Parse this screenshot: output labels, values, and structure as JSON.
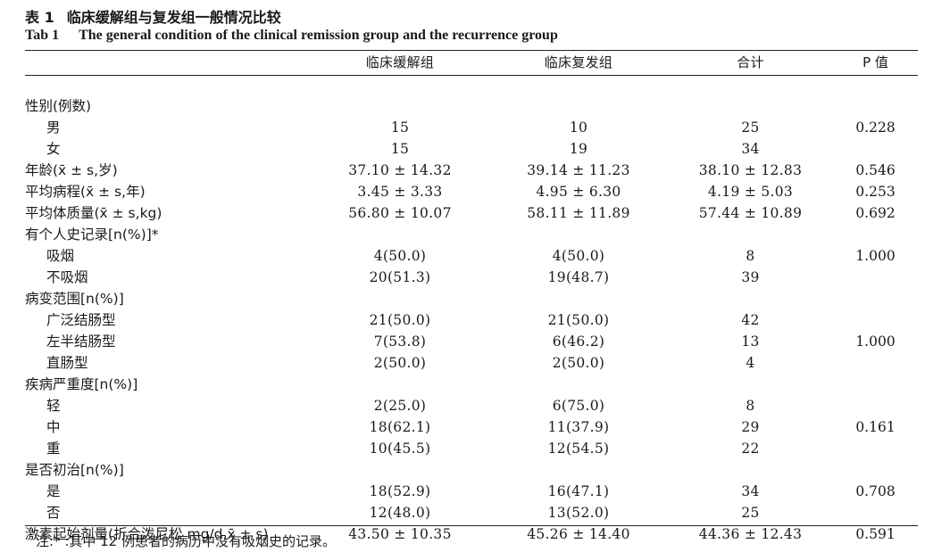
{
  "caption": {
    "cn_num": "表 1",
    "cn_title": "临床缓解组与复发组一般情况比较",
    "en_num": "Tab 1",
    "en_title": "The general condition of the clinical remission group and the recurrence group"
  },
  "columns": [
    "",
    "临床缓解组",
    "临床复发组",
    "合计",
    "P 值"
  ],
  "rows": [
    {
      "label": "性别(例数)",
      "sub": false,
      "remission": "",
      "recurrence": "",
      "total": "",
      "p": ""
    },
    {
      "label": "男",
      "sub": true,
      "remission": "15",
      "recurrence": "10",
      "total": "25",
      "p": "0.228"
    },
    {
      "label": "女",
      "sub": true,
      "remission": "15",
      "recurrence": "19",
      "total": "34",
      "p": ""
    },
    {
      "label": "年龄(x̄ ± s,岁)",
      "sub": false,
      "remission": "37.10 ± 14.32",
      "recurrence": "39.14 ± 11.23",
      "total": "38.10 ± 12.83",
      "p": "0.546"
    },
    {
      "label": "平均病程(x̄ ± s,年)",
      "sub": false,
      "remission": "3.45 ± 3.33",
      "recurrence": "4.95 ± 6.30",
      "total": "4.19 ± 5.03",
      "p": "0.253"
    },
    {
      "label": "平均体质量(x̄ ± s,kg)",
      "sub": false,
      "remission": "56.80 ± 10.07",
      "recurrence": "58.11 ± 11.89",
      "total": "57.44 ± 10.89",
      "p": "0.692"
    },
    {
      "label": "有个人史记录[n(%)]*",
      "sub": false,
      "remission": "",
      "recurrence": "",
      "total": "",
      "p": ""
    },
    {
      "label": "吸烟",
      "sub": true,
      "remission": "4(50.0)",
      "recurrence": "4(50.0)",
      "total": "8",
      "p": "1.000"
    },
    {
      "label": "不吸烟",
      "sub": true,
      "remission": "20(51.3)",
      "recurrence": "19(48.7)",
      "total": "39",
      "p": ""
    },
    {
      "label": "病变范围[n(%)]",
      "sub": false,
      "remission": "",
      "recurrence": "",
      "total": "",
      "p": ""
    },
    {
      "label": "广泛结肠型",
      "sub": true,
      "remission": "21(50.0)",
      "recurrence": "21(50.0)",
      "total": "42",
      "p": ""
    },
    {
      "label": "左半结肠型",
      "sub": true,
      "remission": "7(53.8)",
      "recurrence": "6(46.2)",
      "total": "13",
      "p": "1.000"
    },
    {
      "label": "直肠型",
      "sub": true,
      "remission": "2(50.0)",
      "recurrence": "2(50.0)",
      "total": "4",
      "p": ""
    },
    {
      "label": "疾病严重度[n(%)]",
      "sub": false,
      "remission": "",
      "recurrence": "",
      "total": "",
      "p": ""
    },
    {
      "label": "轻",
      "sub": true,
      "remission": "2(25.0)",
      "recurrence": "6(75.0)",
      "total": "8",
      "p": ""
    },
    {
      "label": "中",
      "sub": true,
      "remission": "18(62.1)",
      "recurrence": "11(37.9)",
      "total": "29",
      "p": "0.161"
    },
    {
      "label": "重",
      "sub": true,
      "remission": "10(45.5)",
      "recurrence": "12(54.5)",
      "total": "22",
      "p": ""
    },
    {
      "label": "是否初治[n(%)]",
      "sub": false,
      "remission": "",
      "recurrence": "",
      "total": "",
      "p": ""
    },
    {
      "label": "是",
      "sub": true,
      "remission": "18(52.9)",
      "recurrence": "16(47.1)",
      "total": "34",
      "p": "0.708"
    },
    {
      "label": "否",
      "sub": true,
      "remission": "12(48.0)",
      "recurrence": "13(52.0)",
      "total": "25",
      "p": ""
    },
    {
      "label": "激素起始剂量(折合泼尼松 mg/d,x̄ ± s)",
      "sub": false,
      "remission": "43.50 ± 10.35",
      "recurrence": "45.26 ± 14.40",
      "total": "44.36 ± 12.43",
      "p": "0.591"
    }
  ],
  "note": "注:* :其中 12 例患者的病历中没有吸烟史的记录。"
}
